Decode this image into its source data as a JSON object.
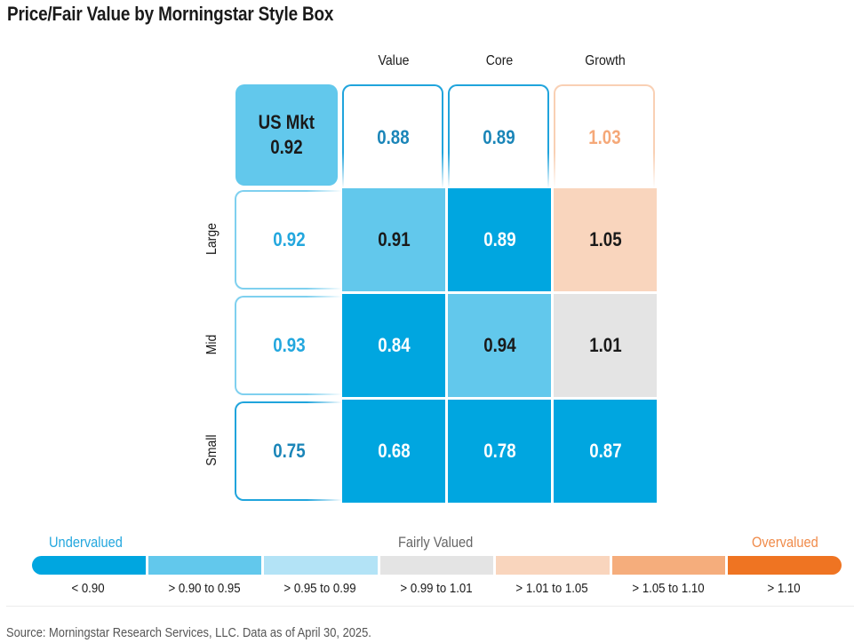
{
  "chart_data": {
    "type": "heatmap",
    "title": "Price/Fair Value by Morningstar Style Box",
    "columns": [
      "Value",
      "Core",
      "Growth"
    ],
    "rows": [
      "Large",
      "Mid",
      "Small"
    ],
    "market": {
      "label": "US Mkt",
      "value": "0.92"
    },
    "column_totals": [
      "0.88",
      "0.89",
      "1.03"
    ],
    "row_totals": [
      "0.92",
      "0.93",
      "0.75"
    ],
    "values": [
      [
        "0.91",
        "0.89",
        "1.05"
      ],
      [
        "0.84",
        "0.94",
        "1.01"
      ],
      [
        "0.68",
        "0.78",
        "0.87"
      ]
    ],
    "legend": {
      "left_label": "Undervalued",
      "center_label": "Fairly Valued",
      "right_label": "Overvalued",
      "bins": [
        {
          "label": "< 0.90",
          "color": "#00a6e0",
          "max": 0.9
        },
        {
          "label": "> 0.90 to 0.95",
          "color": "#62c8ec",
          "max": 0.95
        },
        {
          "label": "> 0.95 to 0.99",
          "color": "#b3e3f6",
          "max": 0.99
        },
        {
          "label": "> 0.99 to 1.01",
          "color": "#e4e4e4",
          "max": 1.01
        },
        {
          "label": "> 1.01 to 1.05",
          "color": "#f9d5bd",
          "max": 1.05
        },
        {
          "label": "> 1.05 to 1.10",
          "color": "#f5ad7c",
          "max": 1.1
        },
        {
          "label": "> 1.10",
          "color": "#ef7422",
          "max": 99
        }
      ]
    },
    "colors": {
      "under_text": "#23a7de",
      "over_text": "#f08b4a",
      "blue_outline": "#20a4dc",
      "light_blue_outline": "#7fd0ef",
      "peach_outline": "#f9d0b4",
      "peach_text": "#f5a878"
    }
  },
  "source": "Source: Morningstar Research Services, LLC. Data as of April 30, 2025."
}
